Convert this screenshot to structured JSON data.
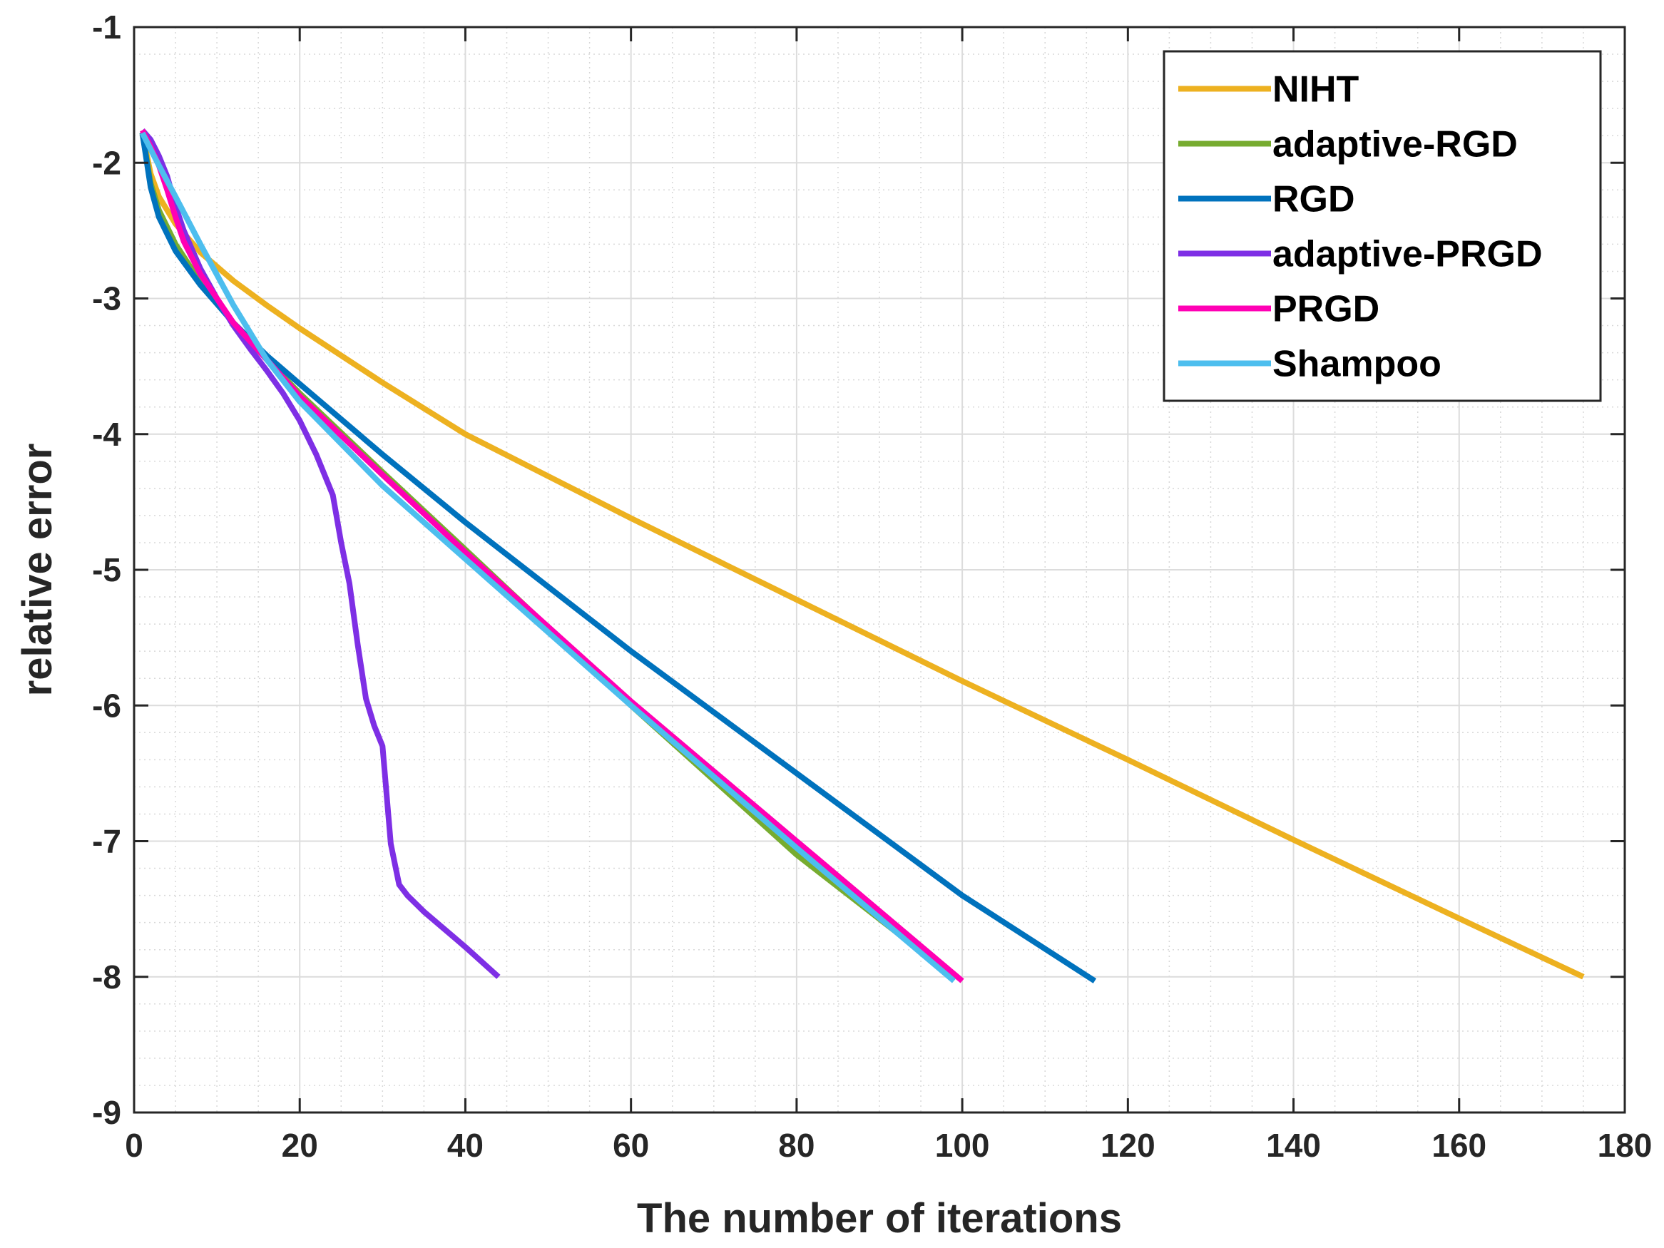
{
  "chart_data": {
    "type": "line",
    "title": "",
    "xlabel": "The number of iterations",
    "ylabel": "relative error",
    "xlim": [
      0,
      180
    ],
    "ylim": [
      -9,
      -1
    ],
    "xticks": [
      0,
      20,
      40,
      60,
      80,
      100,
      120,
      140,
      160,
      180
    ],
    "yticks": [
      -9,
      -8,
      -7,
      -6,
      -5,
      -4,
      -3,
      -2,
      -1
    ],
    "xtick_labels": [
      "0",
      "20",
      "40",
      "60",
      "80",
      "100",
      "120",
      "140",
      "160",
      "180"
    ],
    "ytick_labels": [
      "-9",
      "-8",
      "-7",
      "-6",
      "-5",
      "-4",
      "-3",
      "-2",
      "-1"
    ],
    "grid": true,
    "minor_grid": true,
    "legend_position": "top-right",
    "series": [
      {
        "name": "NIHT",
        "color": "#EDB120",
        "x": [
          1,
          2,
          3,
          5,
          8,
          12,
          16,
          20,
          30,
          40,
          60,
          80,
          100,
          120,
          140,
          160,
          175
        ],
        "y": [
          -1.78,
          -2.08,
          -2.25,
          -2.45,
          -2.66,
          -2.87,
          -3.05,
          -3.22,
          -3.62,
          -4.0,
          -4.62,
          -5.22,
          -5.82,
          -6.4,
          -6.99,
          -7.57,
          -8.0
        ]
      },
      {
        "name": "adaptive-RGD",
        "color": "#77AC30",
        "x": [
          1,
          2,
          3,
          5,
          8,
          12,
          16,
          20,
          30,
          40,
          60,
          80,
          99
        ],
        "y": [
          -1.78,
          -2.15,
          -2.35,
          -2.6,
          -2.88,
          -3.18,
          -3.45,
          -3.7,
          -4.28,
          -4.85,
          -6.0,
          -7.1,
          -8.0
        ]
      },
      {
        "name": "RGD",
        "color": "#0072BD",
        "x": [
          1,
          2,
          3,
          5,
          8,
          12,
          16,
          20,
          30,
          40,
          60,
          80,
          100,
          116
        ],
        "y": [
          -1.78,
          -2.18,
          -2.4,
          -2.65,
          -2.9,
          -3.18,
          -3.42,
          -3.63,
          -4.15,
          -4.65,
          -5.6,
          -6.5,
          -7.4,
          -8.03
        ]
      },
      {
        "name": "adaptive-PRGD",
        "color": "#7E2FE5",
        "x": [
          1,
          2,
          3,
          4,
          5,
          6,
          8,
          10,
          12,
          14,
          16,
          18,
          20,
          22,
          24,
          25,
          26,
          27,
          28,
          29,
          30,
          31,
          32,
          33,
          35,
          40,
          44
        ],
        "y": [
          -1.76,
          -1.83,
          -1.95,
          -2.1,
          -2.32,
          -2.5,
          -2.78,
          -3.0,
          -3.2,
          -3.37,
          -3.53,
          -3.7,
          -3.9,
          -4.15,
          -4.45,
          -4.8,
          -5.1,
          -5.55,
          -5.95,
          -6.15,
          -6.3,
          -7.02,
          -7.32,
          -7.4,
          -7.52,
          -7.78,
          -8.0
        ]
      },
      {
        "name": "PRGD",
        "color": "#FF00B4",
        "x": [
          1,
          2,
          3,
          4,
          5,
          6,
          8,
          12,
          16,
          20,
          30,
          40,
          60,
          80,
          100
        ],
        "y": [
          -1.76,
          -1.88,
          -2.02,
          -2.2,
          -2.4,
          -2.58,
          -2.82,
          -3.18,
          -3.45,
          -3.72,
          -4.3,
          -4.87,
          -5.97,
          -7.0,
          -8.03
        ]
      },
      {
        "name": "Shampoo",
        "color": "#4DBEEE",
        "x": [
          1,
          2,
          3,
          5,
          8,
          12,
          16,
          20,
          30,
          40,
          60,
          80,
          99
        ],
        "y": [
          -1.78,
          -1.9,
          -2.02,
          -2.25,
          -2.6,
          -3.05,
          -3.45,
          -3.76,
          -4.38,
          -4.92,
          -6.0,
          -7.05,
          -8.03
        ]
      }
    ]
  }
}
